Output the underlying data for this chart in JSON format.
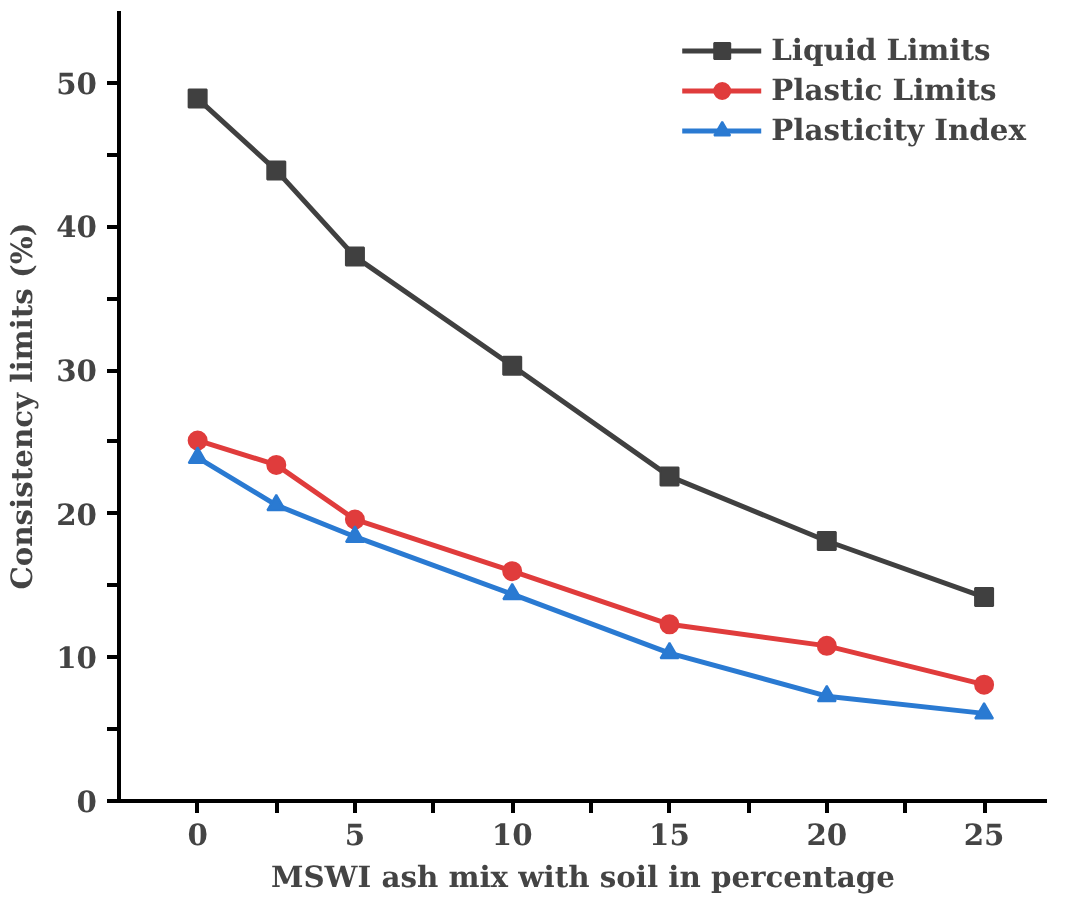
{
  "chart_data": {
    "type": "line",
    "xlabel": "MSWI ash mix with soil in percentage",
    "ylabel": "Consistency limits (%)",
    "x": [
      0,
      2.5,
      5,
      10,
      15,
      20,
      25
    ],
    "series": [
      {
        "name": "Liquid Limits",
        "color": "#404040",
        "marker": "square",
        "values": [
          48.9,
          43.9,
          37.9,
          30.3,
          22.6,
          18.1,
          14.2
        ]
      },
      {
        "name": "Plastic Limits",
        "color": "#e03c3c",
        "marker": "circle",
        "values": [
          25.1,
          23.4,
          19.6,
          16.0,
          12.3,
          10.8,
          8.1
        ]
      },
      {
        "name": "Plasticity Index",
        "color": "#2a7ad2",
        "marker": "triangle",
        "values": [
          23.9,
          20.6,
          18.4,
          14.4,
          10.3,
          7.3,
          6.1
        ]
      }
    ],
    "xlim": [
      -2.5,
      27
    ],
    "ylim": [
      0,
      55
    ],
    "xticks": [
      0,
      {
        "value": 2.5,
        "label": null
      },
      5,
      {
        "value": 7.5,
        "label": null
      },
      10,
      {
        "value": 12.5,
        "label": null
      },
      15,
      {
        "value": 17.5,
        "label": null
      },
      20,
      {
        "value": 22.5,
        "label": null
      },
      25
    ],
    "yticks": [
      0,
      {
        "value": 5,
        "label": null
      },
      10,
      {
        "value": 15,
        "label": null
      },
      20,
      {
        "value": 25,
        "label": null
      },
      30,
      {
        "value": 35,
        "label": null
      },
      40,
      {
        "value": 45,
        "label": null
      },
      50
    ],
    "grid": false,
    "legend": "top right",
    "line_style": "solid"
  }
}
